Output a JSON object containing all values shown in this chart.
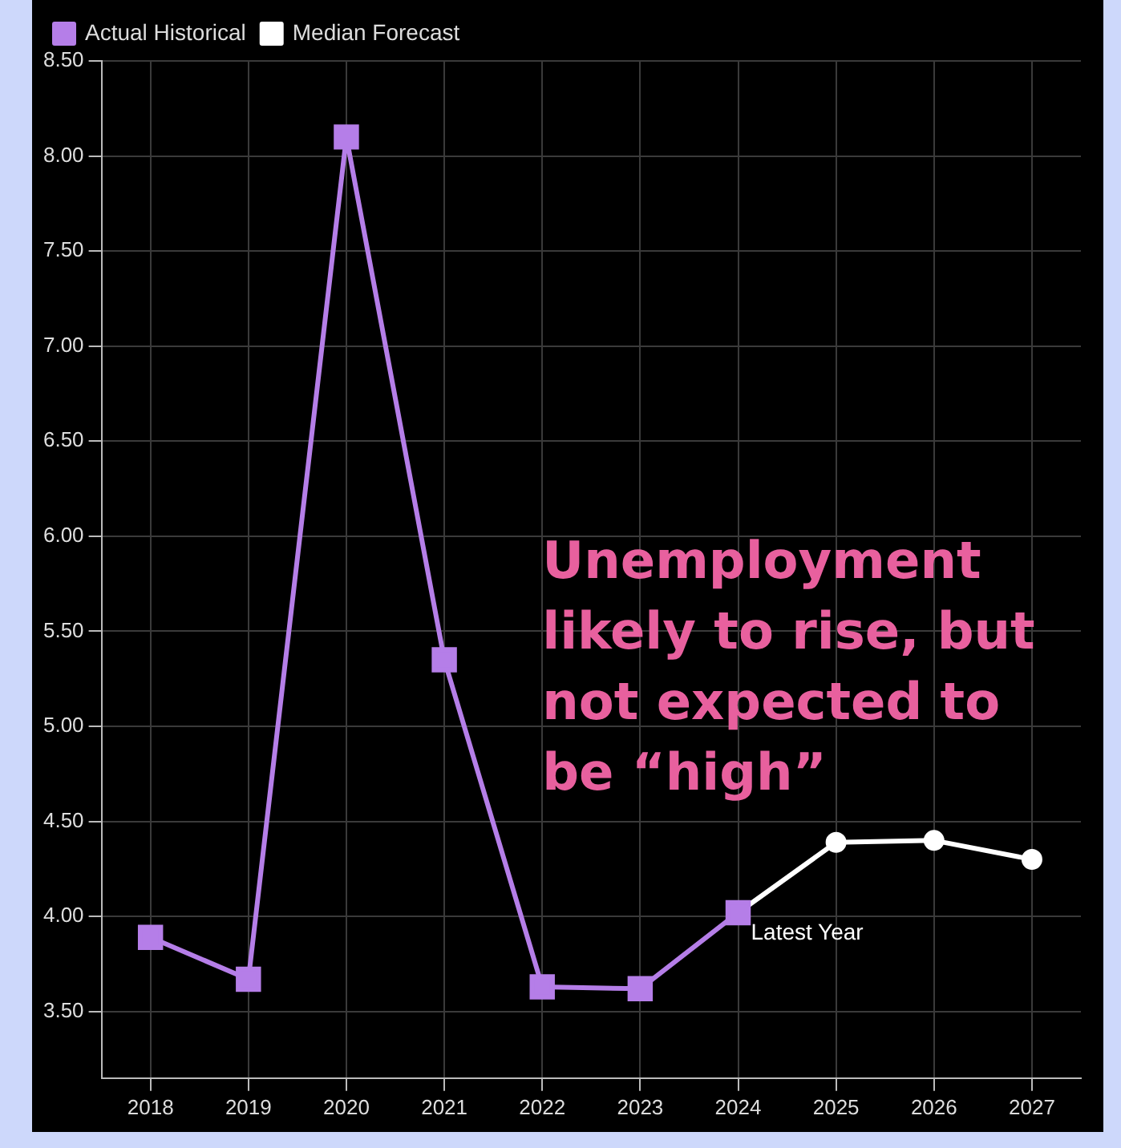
{
  "chart_data": {
    "type": "line",
    "categories": [
      "2018",
      "2019",
      "2020",
      "2021",
      "2022",
      "2023",
      "2024",
      "2025",
      "2026",
      "2027"
    ],
    "series": [
      {
        "name": "Actual Historical",
        "color": "#b57ee8",
        "marker": "square",
        "values": [
          3.89,
          3.67,
          8.1,
          5.35,
          3.63,
          3.62,
          4.02,
          null,
          null,
          null
        ]
      },
      {
        "name": "Median Forecast",
        "color": "#ffffff",
        "marker": "circle",
        "values": [
          null,
          null,
          null,
          null,
          null,
          null,
          4.02,
          4.39,
          4.4,
          4.3
        ]
      }
    ],
    "ylim": [
      3.15,
      8.5
    ],
    "yticks": [
      {
        "value": 3.5,
        "label": "3.50"
      },
      {
        "value": 4,
        "label": "4.00"
      },
      {
        "value": 4.5,
        "label": "4.50"
      },
      {
        "value": 5,
        "label": "5.00"
      },
      {
        "value": 5.5,
        "label": "5.50"
      },
      {
        "value": 6,
        "label": "6.00"
      },
      {
        "value": 6.5,
        "label": "6.50"
      },
      {
        "value": 7,
        "label": "7.00"
      },
      {
        "value": 7.5,
        "label": "7.50"
      },
      {
        "value": 8,
        "label": "8.00"
      },
      {
        "value": 8.5,
        "label": "8.50"
      }
    ],
    "grid": true,
    "legend": "top left",
    "annotations": [
      "Unemployment likely to rise, but not expected to be “high”",
      {
        "text": "Latest Year",
        "x": "2024",
        "y": 4.02
      }
    ]
  }
}
